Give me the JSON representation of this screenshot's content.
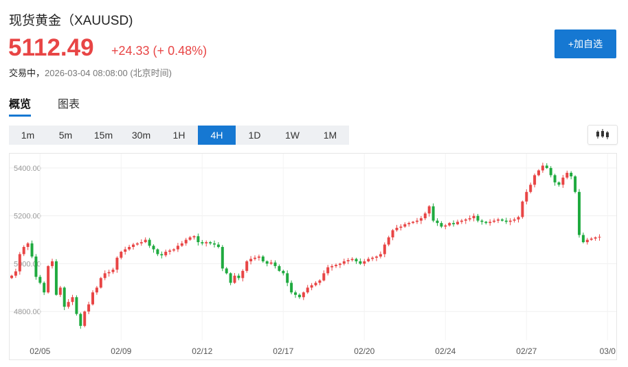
{
  "header": {
    "title": "现货黄金（XAUUSD)",
    "price": "5112.49",
    "change": "+24.33 (+ 0.48%)",
    "trade_status": "交易中，",
    "timestamp": "2026-03-04 08:08:00 (北京时间)",
    "add_button": "+加自选"
  },
  "tabs": [
    {
      "label": "概览",
      "active": true
    },
    {
      "label": "图表",
      "active": false
    }
  ],
  "periods": [
    {
      "label": "1m",
      "active": false
    },
    {
      "label": "5m",
      "active": false
    },
    {
      "label": "15m",
      "active": false
    },
    {
      "label": "30m",
      "active": false
    },
    {
      "label": "1H",
      "active": false
    },
    {
      "label": "4H",
      "active": true
    },
    {
      "label": "1D",
      "active": false
    },
    {
      "label": "1W",
      "active": false
    },
    {
      "label": "1M",
      "active": false
    }
  ],
  "chart_type_icon": "candlestick-icon",
  "colors": {
    "up": "#e84545",
    "down": "#1faa3f",
    "accent": "#1678d2"
  },
  "chart_data": {
    "type": "candlestick",
    "y_ticks": [
      "5400.00",
      "5200.00",
      "5000.00",
      "4800.00"
    ],
    "y_tick_values": [
      5400,
      5200,
      5000,
      4800
    ],
    "ylim": [
      4680,
      5460
    ],
    "x_tick_labels": [
      "02/05",
      "02/09",
      "02/12",
      "02/17",
      "02/20",
      "02/24",
      "02/27",
      "03/0"
    ],
    "x_tick_index": [
      7,
      27,
      47,
      67,
      87,
      107,
      127,
      147
    ],
    "grid": true,
    "closes": [
      4950,
      4968,
      5040,
      5070,
      5085,
      5030,
      4945,
      4920,
      4880,
      4990,
      5010,
      4870,
      4900,
      4820,
      4840,
      4860,
      4790,
      4740,
      4800,
      4830,
      4880,
      4900,
      4940,
      4960,
      4965,
      4975,
      5025,
      5050,
      5060,
      5070,
      5080,
      5085,
      5090,
      5100,
      5075,
      5060,
      5040,
      5035,
      5050,
      5055,
      5060,
      5075,
      5085,
      5100,
      5110,
      5115,
      5090,
      5085,
      5090,
      5085,
      5080,
      5070,
      4980,
      4960,
      4920,
      4950,
      4940,
      4970,
      5010,
      5020,
      5025,
      5030,
      5010,
      5000,
      5005,
      4990,
      4970,
      4960,
      4920,
      4880,
      4870,
      4860,
      4880,
      4900,
      4910,
      4920,
      4930,
      4960,
      4985,
      4990,
      4995,
      5000,
      5010,
      5015,
      5020,
      5010,
      5000,
      5010,
      5020,
      5025,
      5030,
      5040,
      5080,
      5110,
      5140,
      5150,
      5155,
      5165,
      5170,
      5175,
      5180,
      5190,
      5210,
      5240,
      5180,
      5170,
      5155,
      5160,
      5170,
      5165,
      5175,
      5180,
      5185,
      5190,
      5200,
      5180,
      5175,
      5170,
      5175,
      5180,
      5185,
      5180,
      5175,
      5180,
      5185,
      5195,
      5260,
      5300,
      5330,
      5370,
      5390,
      5410,
      5400,
      5370,
      5340,
      5330,
      5360,
      5380,
      5365,
      5300,
      5120,
      5090,
      5100,
      5105,
      5110,
      5112
    ]
  }
}
